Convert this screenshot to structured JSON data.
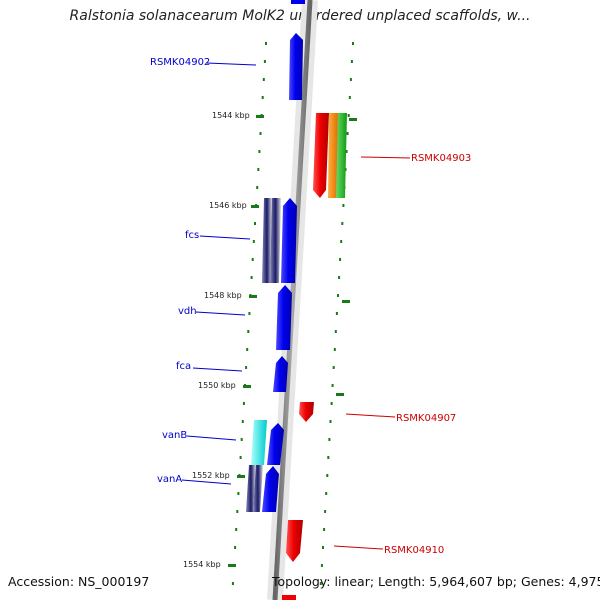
{
  "header": {
    "title": "Ralstonia solanacearum MolK2 unordered unplaced scaffolds, w..."
  },
  "footer": {
    "accession": "Accession: NS_000197",
    "summary": "Topology: linear; Length: 5,964,607 bp; Genes: 4,975"
  },
  "ruler": [
    {
      "label": "1544 kbp"
    },
    {
      "label": "1546 kbp"
    },
    {
      "label": "1548 kbp"
    },
    {
      "label": "1550 kbp"
    },
    {
      "label": "1552 kbp"
    },
    {
      "label": "1554 kbp"
    }
  ],
  "genes": {
    "left": [
      {
        "label": "RSMK04902",
        "color": "#0000cc"
      },
      {
        "label": "fcs",
        "color": "#0000cc"
      },
      {
        "label": "vdh",
        "color": "#0000cc"
      },
      {
        "label": "fca",
        "color": "#0000cc"
      },
      {
        "label": "vanB",
        "color": "#0000cc"
      },
      {
        "label": "vanA",
        "color": "#0000cc"
      }
    ],
    "right": [
      {
        "label": "RSMK04903",
        "color": "#cc0000"
      },
      {
        "label": "RSMK04907",
        "color": "#cc0000"
      },
      {
        "label": "RSMK04910",
        "color": "#cc0000"
      }
    ]
  },
  "colors": {
    "forward_strand": "#0000ee",
    "reverse_strand": "#ee0000",
    "backbone": "#888888",
    "tick_marks": "#1a7a1a",
    "cog_orange": "#ff8c00",
    "cog_green": "#22bb22",
    "cog_cyan": "#00dddd",
    "cog_navy": "#1a1a66"
  }
}
